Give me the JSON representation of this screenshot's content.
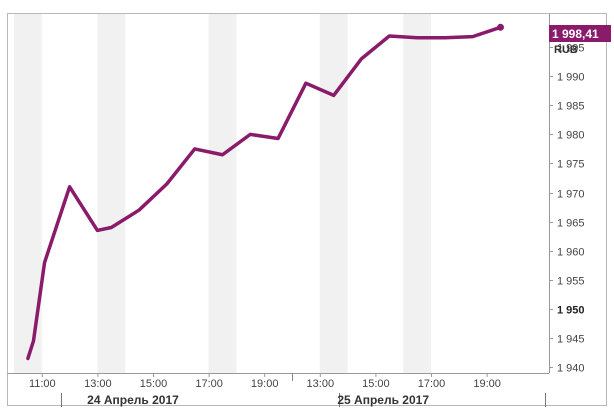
{
  "chart_data": {
    "type": "line",
    "currency": "RUB",
    "last_price_label": "1 998,41",
    "ylim": [
      1939,
      2000
    ],
    "y_ticks": [
      {
        "value": 1940,
        "label": "1 940",
        "bold": false
      },
      {
        "value": 1945,
        "label": "1 945",
        "bold": false
      },
      {
        "value": 1950,
        "label": "1 950",
        "bold": true
      },
      {
        "value": 1955,
        "label": "1 955",
        "bold": false
      },
      {
        "value": 1960,
        "label": "1 960",
        "bold": false
      },
      {
        "value": 1965,
        "label": "1 965",
        "bold": false
      },
      {
        "value": 1970,
        "label": "1 970",
        "bold": false
      },
      {
        "value": 1975,
        "label": "1 975",
        "bold": false
      },
      {
        "value": 1980,
        "label": "1 980",
        "bold": false
      },
      {
        "value": 1985,
        "label": "1 985",
        "bold": false
      },
      {
        "value": 1990,
        "label": "1 990",
        "bold": false
      },
      {
        "value": 1995,
        "label": "1 995",
        "bold": false
      }
    ],
    "x_slots": 18,
    "x_ticks": [
      {
        "slot": 1,
        "label": "11:00"
      },
      {
        "slot": 3,
        "label": "13:00"
      },
      {
        "slot": 5,
        "label": "15:00"
      },
      {
        "slot": 7,
        "label": "17:00"
      },
      {
        "slot": 9,
        "label": "19:00"
      },
      {
        "slot": 11,
        "label": "13:00"
      },
      {
        "slot": 13,
        "label": "15:00"
      },
      {
        "slot": 15,
        "label": "17:00"
      },
      {
        "slot": 17,
        "label": "19:00"
      }
    ],
    "day_separator_slot": 10,
    "day_labels": [
      {
        "label": "24 Апрель 2017",
        "from_slot": 0,
        "to_slot": 10
      },
      {
        "label": "25 Апрель 2017",
        "from_slot": 10,
        "to_slot": 18
      }
    ],
    "shaded_bands": [
      [
        0,
        1
      ],
      [
        3,
        4
      ],
      [
        7,
        8
      ],
      [
        11,
        12
      ],
      [
        14,
        15
      ]
    ],
    "series": [
      {
        "color": "#8a1a6a",
        "points": [
          {
            "x": 0.0,
            "y": 1941.5
          },
          {
            "x": 0.2,
            "y": 1944.5
          },
          {
            "x": 0.6,
            "y": 1958
          },
          {
            "x": 1.5,
            "y": 1971
          },
          {
            "x": 2.5,
            "y": 1963.5
          },
          {
            "x": 3.0,
            "y": 1964
          },
          {
            "x": 4.0,
            "y": 1967
          },
          {
            "x": 5.0,
            "y": 1971.5
          },
          {
            "x": 6.0,
            "y": 1977.5
          },
          {
            "x": 7.0,
            "y": 1976.5
          },
          {
            "x": 8.0,
            "y": 1980
          },
          {
            "x": 9.0,
            "y": 1979.3
          },
          {
            "x": 10.0,
            "y": 1988.8
          },
          {
            "x": 11.0,
            "y": 1986.7
          },
          {
            "x": 12.0,
            "y": 1993
          },
          {
            "x": 13.0,
            "y": 1996.9
          },
          {
            "x": 14.0,
            "y": 1996.6
          },
          {
            "x": 15.0,
            "y": 1996.6
          },
          {
            "x": 16.0,
            "y": 1996.8
          },
          {
            "x": 17.0,
            "y": 1998.4
          }
        ]
      }
    ]
  }
}
